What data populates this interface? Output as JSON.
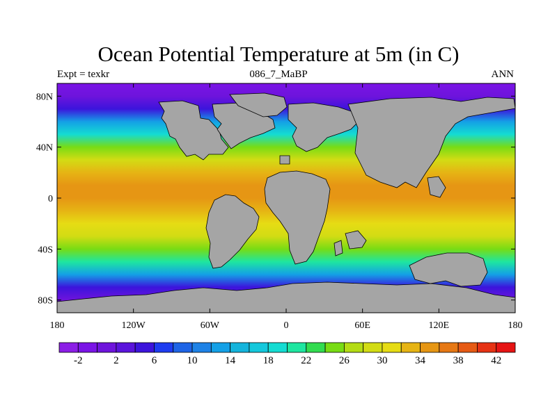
{
  "chart_data": {
    "type": "heatmap",
    "title": "Ocean Potential Temperature at 5m (in C)",
    "left_label": "Expt = texkr",
    "center_label": "086_7_MaBP",
    "right_label": "ANN",
    "xlabel": "",
    "ylabel": "",
    "xlim": [
      -180,
      180
    ],
    "ylim": [
      -90,
      90
    ],
    "x_ticks": [
      {
        "value": -180,
        "label": "180"
      },
      {
        "value": -120,
        "label": "120W"
      },
      {
        "value": -60,
        "label": "60W"
      },
      {
        "value": 0,
        "label": "0"
      },
      {
        "value": 60,
        "label": "60E"
      },
      {
        "value": 120,
        "label": "120E"
      },
      {
        "value": 180,
        "label": "180"
      }
    ],
    "y_ticks": [
      {
        "value": 80,
        "label": "80N"
      },
      {
        "value": 40,
        "label": "40N"
      },
      {
        "value": 0,
        "label": "0"
      },
      {
        "value": -40,
        "label": "40S"
      },
      {
        "value": -80,
        "label": "80S"
      }
    ],
    "zonal_profile": {
      "latitudes": [
        -90,
        -80,
        -70,
        -60,
        -50,
        -40,
        -30,
        -20,
        -10,
        0,
        10,
        20,
        30,
        40,
        50,
        60,
        70,
        80,
        90
      ],
      "temperature_c": [
        -2,
        0,
        4,
        12,
        20,
        25,
        29,
        31,
        33,
        34,
        34,
        32,
        29,
        25,
        19,
        13,
        5,
        0,
        -2
      ]
    },
    "colorbar": {
      "levels": [
        -4,
        -2,
        0,
        2,
        4,
        6,
        8,
        10,
        12,
        14,
        16,
        18,
        20,
        22,
        24,
        26,
        28,
        30,
        32,
        34,
        36,
        38,
        40,
        42,
        44
      ],
      "colors": [
        "#8c1ee6",
        "#7a14e6",
        "#6e14dc",
        "#5a14dc",
        "#3c14dc",
        "#1e3cf0",
        "#1e64e6",
        "#1e82e6",
        "#14a0e6",
        "#14b4dc",
        "#14c8dc",
        "#14dcd2",
        "#1ee6a0",
        "#32dc50",
        "#78dc14",
        "#b4dc14",
        "#d2dc14",
        "#e6dc14",
        "#e6b414",
        "#e69614",
        "#e67814",
        "#e65a14",
        "#e63214",
        "#e61414"
      ],
      "tick_labels": [
        "-2",
        "2",
        "6",
        "10",
        "14",
        "18",
        "22",
        "26",
        "30",
        "34",
        "38",
        "42"
      ]
    },
    "land_color": "#a5a5a5"
  }
}
